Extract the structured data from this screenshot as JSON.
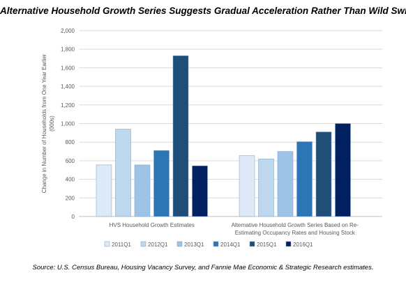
{
  "chart_data": {
    "type": "bar",
    "title": "Alternative Household Growth Series Suggests Gradual Acceleration Rather Than Wild Swings",
    "ylabel": "Change in Number of Households from One Year Earlier (000s)",
    "xlabel": "",
    "ylim": [
      0,
      2000
    ],
    "yticks": [
      0,
      200,
      400,
      600,
      800,
      1000,
      1200,
      1400,
      1600,
      1800,
      2000
    ],
    "ytick_labels": [
      "0",
      "200",
      "400",
      "600",
      "800",
      "1,000",
      "1,200",
      "1,400",
      "1,600",
      "1,800",
      "2,000"
    ],
    "grid": true,
    "legend_position": "bottom",
    "categories": [
      "HVS Household Growth Estimates",
      "Alternative Household Growth Series Based on Re-Estimating Occupancy Rates and Housing Stock"
    ],
    "category_label_lines": [
      [
        "HVS Household Growth Estimates"
      ],
      [
        "Alternative Household Growth Series Based on Re-",
        "Estimating Occupancy Rates and Housing Stock"
      ]
    ],
    "series": [
      {
        "name": "2011Q1",
        "color": "#dde9f7",
        "values": [
          555,
          655
        ]
      },
      {
        "name": "2012Q1",
        "color": "#bdd7ee",
        "values": [
          940,
          620
        ]
      },
      {
        "name": "2013Q1",
        "color": "#9dc3e6",
        "values": [
          555,
          700
        ]
      },
      {
        "name": "2014Q1",
        "color": "#2e75b6",
        "values": [
          710,
          805
        ]
      },
      {
        "name": "2015Q1",
        "color": "#1f4e79",
        "values": [
          1730,
          910
        ]
      },
      {
        "name": "2016Q1",
        "color": "#002060",
        "values": [
          545,
          1000
        ]
      }
    ]
  },
  "source_note": "Source: U.S. Census Bureau, Housing Vacancy Survey, and Fannie Mae Economic & Strategic Research estimates."
}
